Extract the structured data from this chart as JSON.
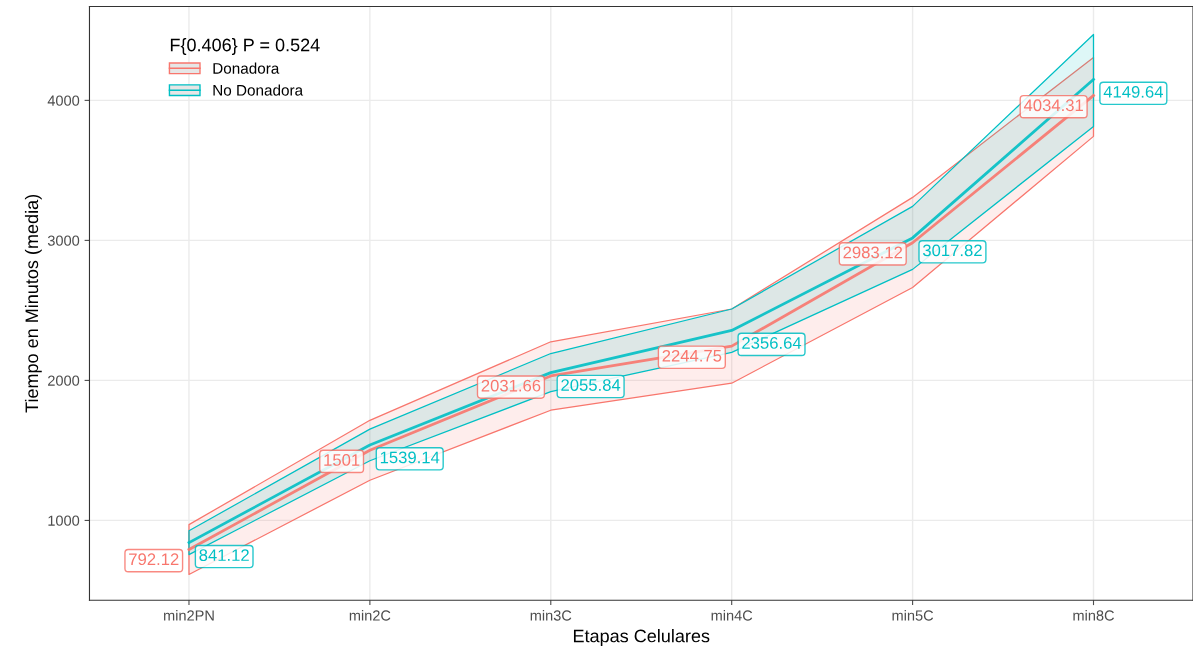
{
  "chart_data": {
    "type": "line",
    "xlabel": "Etapas Celulares",
    "ylabel": "Tiempo en Minutos (media)",
    "legend_title": "F{0.406} P = 0.524",
    "categories": [
      "min2PN",
      "min2C",
      "min3C",
      "min4C",
      "min5C",
      "min8C"
    ],
    "ylim": [
      430,
      4670
    ],
    "yticks": [
      1000,
      2000,
      3000,
      4000
    ],
    "grid": true,
    "legend": "top left",
    "data_labels": true,
    "marker": "none",
    "line_style": "solid",
    "series": [
      {
        "name": "Donadora",
        "color": "#f8766d",
        "values": [
          792.12,
          1501,
          2031.66,
          2244.75,
          2983.12,
          4034.31
        ],
        "lower": [
          614,
          1287,
          1787,
          1980,
          2664,
          3743
        ],
        "upper": [
          970,
          1715,
          2276,
          2510,
          3307,
          4307
        ]
      },
      {
        "name": "No Donadora",
        "color": "#00bfc4",
        "values": [
          841.12,
          1539.14,
          2055.84,
          2356.64,
          3017.82,
          4149.64
        ],
        "lower": [
          756,
          1426,
          1920,
          2200,
          2793,
          3814
        ],
        "upper": [
          926,
          1652,
          2192,
          2510,
          3243,
          4471
        ]
      }
    ]
  }
}
